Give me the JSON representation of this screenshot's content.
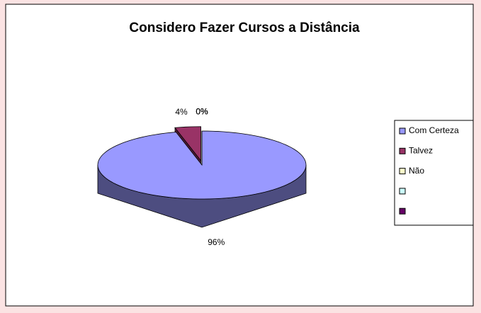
{
  "chart_data": {
    "type": "pie3d",
    "title": "Considero  Fazer Cursos a Distância",
    "categories": [
      "Com Certeza",
      "Talvez",
      "Não",
      null,
      null
    ],
    "values": [
      96,
      4,
      0,
      0,
      0
    ],
    "value_labels": [
      "96%",
      "4%",
      "0%",
      "0%",
      "0%"
    ],
    "colors": [
      "#9999ff",
      "#993366",
      "#ffffcc",
      "#ccffff",
      "#660066"
    ],
    "exploded": [
      false,
      true,
      false,
      false,
      false
    ],
    "legend": "right"
  }
}
